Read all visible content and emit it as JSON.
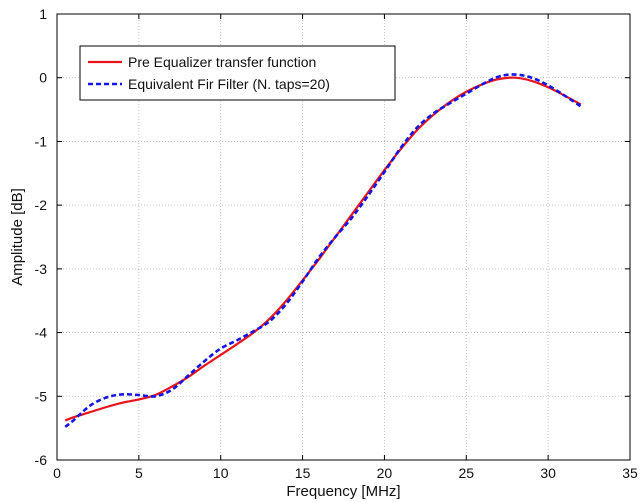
{
  "chart_data": {
    "type": "line",
    "title": "",
    "xlabel": "Frequency [MHz]",
    "ylabel": "Amplitude [dB]",
    "xlim": [
      0,
      35
    ],
    "ylim": [
      -6,
      1
    ],
    "xticks": [
      0,
      5,
      10,
      15,
      20,
      25,
      30,
      35
    ],
    "yticks": [
      1,
      0,
      -1,
      -2,
      -3,
      -4,
      -5,
      -6
    ],
    "grid": true,
    "legend_position": "top-left",
    "series": [
      {
        "name": "Pre Equalizer transfer function",
        "color": "#e8141c",
        "style": "solid",
        "x": [
          0.5,
          1,
          2,
          3,
          4,
          5,
          6,
          7,
          8,
          9,
          10,
          11,
          12,
          13,
          14,
          15,
          16,
          17,
          18,
          19,
          20,
          21,
          22,
          23,
          24,
          25,
          26,
          27,
          28,
          29,
          30,
          31,
          32
        ],
        "y": [
          -5.38,
          -5.33,
          -5.25,
          -5.17,
          -5.1,
          -5.05,
          -4.98,
          -4.85,
          -4.7,
          -4.52,
          -4.35,
          -4.18,
          -4.0,
          -3.78,
          -3.5,
          -3.18,
          -2.85,
          -2.5,
          -2.15,
          -1.8,
          -1.45,
          -1.12,
          -0.82,
          -0.58,
          -0.38,
          -0.22,
          -0.1,
          -0.02,
          0.0,
          -0.05,
          -0.15,
          -0.28,
          -0.42
        ]
      },
      {
        "name": "Equivalent Fir Filter (N. taps=20)",
        "color": "#1414e6",
        "style": "dashed",
        "x": [
          0.5,
          1,
          2,
          3,
          4,
          5,
          6,
          7,
          8,
          9,
          10,
          11,
          12,
          13,
          14,
          15,
          16,
          17,
          18,
          19,
          20,
          21,
          22,
          23,
          24,
          25,
          26,
          27,
          28,
          29,
          30,
          31,
          32
        ],
        "y": [
          -5.48,
          -5.38,
          -5.15,
          -5.02,
          -4.97,
          -4.98,
          -5.0,
          -4.9,
          -4.68,
          -4.45,
          -4.25,
          -4.12,
          -3.98,
          -3.82,
          -3.55,
          -3.2,
          -2.82,
          -2.5,
          -2.2,
          -1.85,
          -1.48,
          -1.1,
          -0.78,
          -0.56,
          -0.4,
          -0.25,
          -0.1,
          0.02,
          0.05,
          0.0,
          -0.12,
          -0.28,
          -0.45
        ]
      }
    ]
  }
}
